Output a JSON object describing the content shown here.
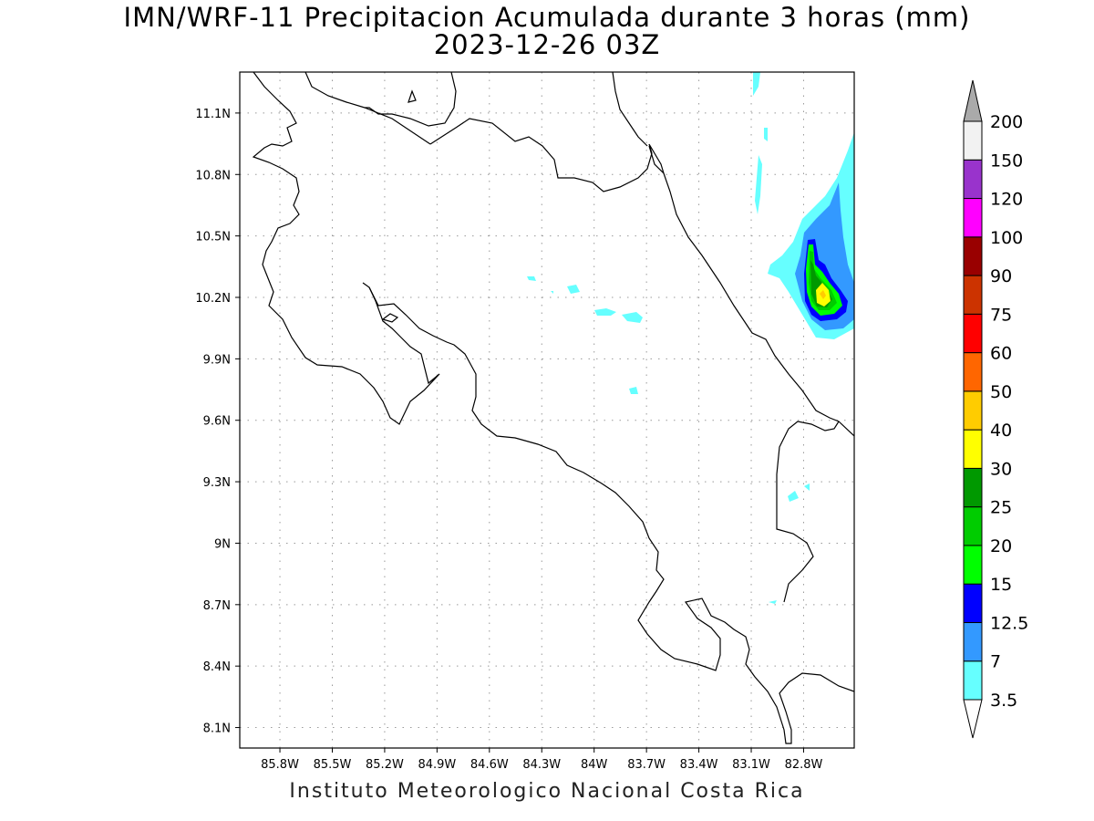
{
  "title_line1": "IMN/WRF-11 Precipitacion Acumulada durante 3 horas (mm)",
  "title_line2": "2023-12-26 03Z",
  "footer": "Instituto Meteorologico Nacional Costa Rica",
  "chart_data": {
    "type": "heatmap",
    "title": "IMN/WRF-11 Precipitacion Acumulada durante 3 horas (mm)",
    "subtitle": "2023-12-26 03Z",
    "variable": "3-hour accumulated precipitation (mm)",
    "x_ticks": [
      "85.8W",
      "85.5W",
      "85.2W",
      "84.9W",
      "84.6W",
      "84.3W",
      "84W",
      "83.7W",
      "83.4W",
      "83.1W",
      "82.8W"
    ],
    "x_tick_values": [
      -85.8,
      -85.5,
      -85.2,
      -84.9,
      -84.6,
      -84.3,
      -84.0,
      -83.7,
      -83.4,
      -83.1,
      -82.8
    ],
    "y_ticks": [
      "11.1N",
      "10.8N",
      "10.5N",
      "10.2N",
      "9.9N",
      "9.6N",
      "9.3N",
      "9N",
      "8.7N",
      "8.4N",
      "8.1N"
    ],
    "y_tick_values": [
      11.1,
      10.8,
      10.5,
      10.2,
      9.9,
      9.6,
      9.3,
      9.0,
      8.7,
      8.4,
      8.1
    ],
    "xlim": [
      -86.03,
      -82.51
    ],
    "ylim": [
      8.0,
      11.3
    ],
    "grid": true,
    "colorbar": {
      "labels": [
        "3.5",
        "7",
        "12.5",
        "15",
        "20",
        "25",
        "30",
        "40",
        "50",
        "60",
        "75",
        "90",
        "100",
        "120",
        "150",
        "200"
      ],
      "colors": [
        "#66ffff",
        "#3399ff",
        "#0000ff",
        "#00ff00",
        "#00cc00",
        "#009900",
        "#ffff00",
        "#ffcc00",
        "#ff6600",
        "#ff0000",
        "#cc3300",
        "#990000",
        "#ff00ff",
        "#9933cc",
        "#f2f2f2"
      ],
      "over_color": "#aaaaaa",
      "under_color": "#ffffff",
      "placement": "right"
    }
  }
}
